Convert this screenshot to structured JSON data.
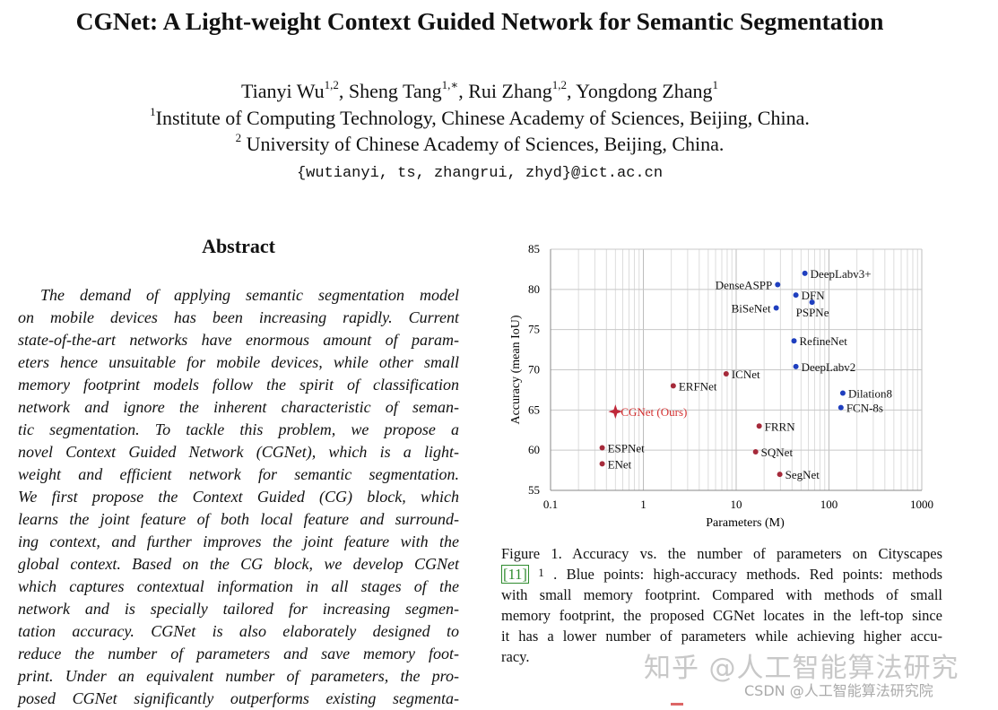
{
  "paper": {
    "title": "CGNet: A Light-weight Context Guided Network for Semantic Segmentation",
    "authors": [
      {
        "name": "Tianyi Wu",
        "sup": "1,2",
        "sep": ", "
      },
      {
        "name": "Sheng Tang",
        "sup": "1,∗",
        "sep": ", "
      },
      {
        "name": "Rui Zhang",
        "sup": "1,2",
        "sep": ", "
      },
      {
        "name": "Yongdong Zhang",
        "sup": "1",
        "sep": ""
      }
    ],
    "affiliation1": {
      "sup": "1",
      "text": "Institute of Computing Technology, Chinese Academy of Sciences, Beijing, China."
    },
    "affiliation2": {
      "sup": "2",
      "text": " University of Chinese Academy of Sciences, Beijing, China."
    },
    "email": "{wutianyi, ts, zhangrui, zhyd}@ict.ac.cn"
  },
  "abstract": {
    "heading": "Abstract",
    "lines": [
      "The demand of applying semantic segmentation model",
      "on mobile devices has been increasing rapidly.  Current",
      "state-of-the-art networks have enormous amount of param-",
      "eters hence unsuitable for mobile devices, while other small",
      "memory footprint models follow the spirit of classification",
      "network and ignore the inherent characteristic of seman-",
      "tic segmentation.  To tackle this problem, we propose a",
      "novel Context Guided Network (CGNet), which is a light-",
      "weight and efficient network for semantic segmentation.",
      "We first propose the Context Guided (CG) block, which",
      "learns the joint feature of both local feature and surround-",
      "ing context, and further improves the joint feature with the",
      "global context.  Based on the CG block, we develop CGNet",
      "which captures contextual information in all stages of the",
      "network and is specially tailored for increasing segmen-",
      "tation accuracy.  CGNet is also elaborately designed to",
      "reduce the number of parameters and save memory foot-",
      "print.  Under an equivalent number of parameters, the pro-",
      "posed CGNet significantly outperforms existing segmenta-"
    ]
  },
  "chart_data": {
    "type": "scatter",
    "xlabel": "Parameters (M)",
    "ylabel": "Accuracy (mean IoU)",
    "xscale": "log",
    "xlim": [
      0.1,
      1000
    ],
    "ylim": [
      55,
      85
    ],
    "xticks": [
      "0.1",
      "1",
      "10",
      "100",
      "1000"
    ],
    "yticks": [
      "55",
      "60",
      "65",
      "70",
      "75",
      "80",
      "85"
    ],
    "grid": true,
    "colors": {
      "high_accuracy": "#1f3fbf",
      "small_footprint": "#a52a3a",
      "ours": "#c0283a",
      "ours_label": "#d43030"
    },
    "points": [
      {
        "label": "DeepLabv3+",
        "x": 55,
        "y": 82,
        "group": "high_accuracy"
      },
      {
        "label": "DenseASPP",
        "x": 28,
        "y": 80.6,
        "group": "high_accuracy"
      },
      {
        "label": "DFN",
        "x": 44,
        "y": 79.3,
        "group": "high_accuracy"
      },
      {
        "label": "PSPNe",
        "x": 65.7,
        "y": 78.4,
        "group": "high_accuracy"
      },
      {
        "label": "BiSeNet",
        "x": 27,
        "y": 77.7,
        "group": "high_accuracy"
      },
      {
        "label": "RefineNet",
        "x": 42,
        "y": 73.6,
        "group": "high_accuracy"
      },
      {
        "label": "DeepLabv2",
        "x": 44,
        "y": 70.4,
        "group": "high_accuracy"
      },
      {
        "label": "Dilation8",
        "x": 141,
        "y": 67.1,
        "group": "high_accuracy"
      },
      {
        "label": "FCN-8s",
        "x": 134.5,
        "y": 65.3,
        "group": "high_accuracy"
      },
      {
        "label": "ICNet",
        "x": 7.8,
        "y": 69.5,
        "group": "small_footprint"
      },
      {
        "label": "ERFNet",
        "x": 2.1,
        "y": 68,
        "group": "small_footprint"
      },
      {
        "label": "CGNet (Ours)",
        "x": 0.5,
        "y": 64.8,
        "group": "ours"
      },
      {
        "label": "FRRN",
        "x": 17.7,
        "y": 63,
        "group": "small_footprint"
      },
      {
        "label": "ESPNet",
        "x": 0.36,
        "y": 60.3,
        "group": "small_footprint"
      },
      {
        "label": "SQNet",
        "x": 16.2,
        "y": 59.8,
        "group": "small_footprint"
      },
      {
        "label": "ENet",
        "x": 0.36,
        "y": 58.3,
        "group": "small_footprint"
      },
      {
        "label": "SegNet",
        "x": 29.5,
        "y": 57,
        "group": "small_footprint"
      }
    ]
  },
  "caption": {
    "lines": [
      "Figure 1. Accuracy vs.  the number of parameters on Cityscapes",
      " .  Blue points: high-accuracy methods. Red points: methods",
      "with small memory footprint.  Compared with methods of small",
      "memory footprint, the proposed CGNet locates in the left-top since",
      "it has a lower number of parameters while achieving higher accu-",
      "racy."
    ],
    "ref": "[11]",
    "footnote_sup": "1"
  },
  "watermark": {
    "main": "知乎 @人工智能算法研究",
    "sub": "CSDN @人工智能算法研究院"
  }
}
